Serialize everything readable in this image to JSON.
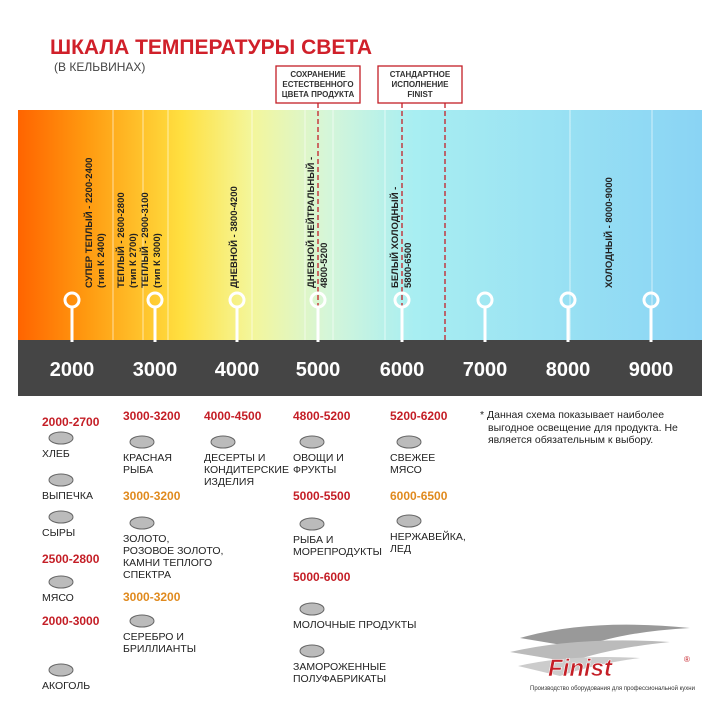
{
  "header": {
    "title": "ШКАЛА ТЕМПЕРАТУРЫ СВЕТА",
    "subtitle": "(В КЕЛЬВИНАХ)"
  },
  "callouts": [
    "СОХРАНЕНИЕ\nЕСТЕСТВЕННОГО\nЦВЕТА ПРОДУКТА",
    "СТАНДАРТНОЕ\nИСПОЛНЕНИЕ\nFINIST"
  ],
  "bands": [
    {
      "label": "СУПЕР ТЕПЛЫЙ - 2200-2400",
      "sublabel": "(тип К 2400)"
    },
    {
      "label": "ТЕПЛЫЙ - 2600-2800",
      "sublabel": "(тип К 2700)"
    },
    {
      "label": "ТЕПЛЫЙ - 2900-3100",
      "sublabel": "(тип К 3000)"
    },
    {
      "label": "ДНЕВНОЙ - 3800-4200"
    },
    {
      "label": "ДНЕВНОЙ НЕЙТРАЛЬНЫЙ -",
      "sublabel": "4800-5200"
    },
    {
      "label": "БЕЛЫЙ ХОЛОДНЫЙ -",
      "sublabel": "5800-6500"
    },
    {
      "label": "ХОЛОДНЫЙ - 8000-9000"
    }
  ],
  "scale": [
    "2000",
    "3000",
    "4000",
    "5000",
    "6000",
    "7000",
    "8000",
    "9000"
  ],
  "columns": [
    [
      {
        "range": "2000-2700",
        "items": [
          "ХЛЕБ",
          "ВЫПЕЧКА",
          "СЫРЫ"
        ]
      },
      {
        "range": "2500-2800",
        "items": [
          "МЯСО"
        ]
      },
      {
        "range": "2000-3000",
        "items": [
          "АКОГОЛЬ"
        ]
      }
    ],
    [
      {
        "range": "3000-3200",
        "items": [
          "КРАСНАЯ\nРЫБА"
        ]
      },
      {
        "range": "3000-3200",
        "items": [
          "ЗОЛОТО,\nРОЗОВОЕ ЗОЛОТО,\nКАМНИ ТЕПЛОГО\nСПЕКТРА"
        ]
      },
      {
        "range": "3000-3200",
        "items": [
          "СЕРЕБРО И\nБРИЛЛИАНТЫ"
        ]
      }
    ],
    [
      {
        "range": "4000-4500",
        "items": [
          "ДЕСЕРТЫ И\nКОНДИТЕРСКИЕ\nИЗДЕЛИЯ"
        ]
      }
    ],
    [
      {
        "range": "4800-5200",
        "items": [
          "ОВОЩИ И\nФРУКТЫ"
        ]
      },
      {
        "range": "5000-5500",
        "items": [
          "РЫБА И\nМОРЕПРОДУКТЫ"
        ]
      },
      {
        "range": "5000-6000",
        "items": [
          "МОЛОЧНЫЕ ПРОДУКТЫ",
          "ЗАМОРОЖЕННЫЕ\nПОЛУФАБРИКАТЫ"
        ]
      }
    ],
    [
      {
        "range": "5200-6200",
        "items": [
          "СВЕЖЕЕ\nМЯСО"
        ]
      },
      {
        "range": "6000-6500",
        "items": [
          "НЕРЖАВЕЙКА,\nЛЕД"
        ]
      }
    ]
  ],
  "note": "* Данная схема показывает наиболее выгодное освещение для продукта. Не является обязательным к выбору.",
  "logo": {
    "name": "Finist",
    "mark": "®",
    "tagline": "Производство оборудования для профессиональной кухни"
  }
}
